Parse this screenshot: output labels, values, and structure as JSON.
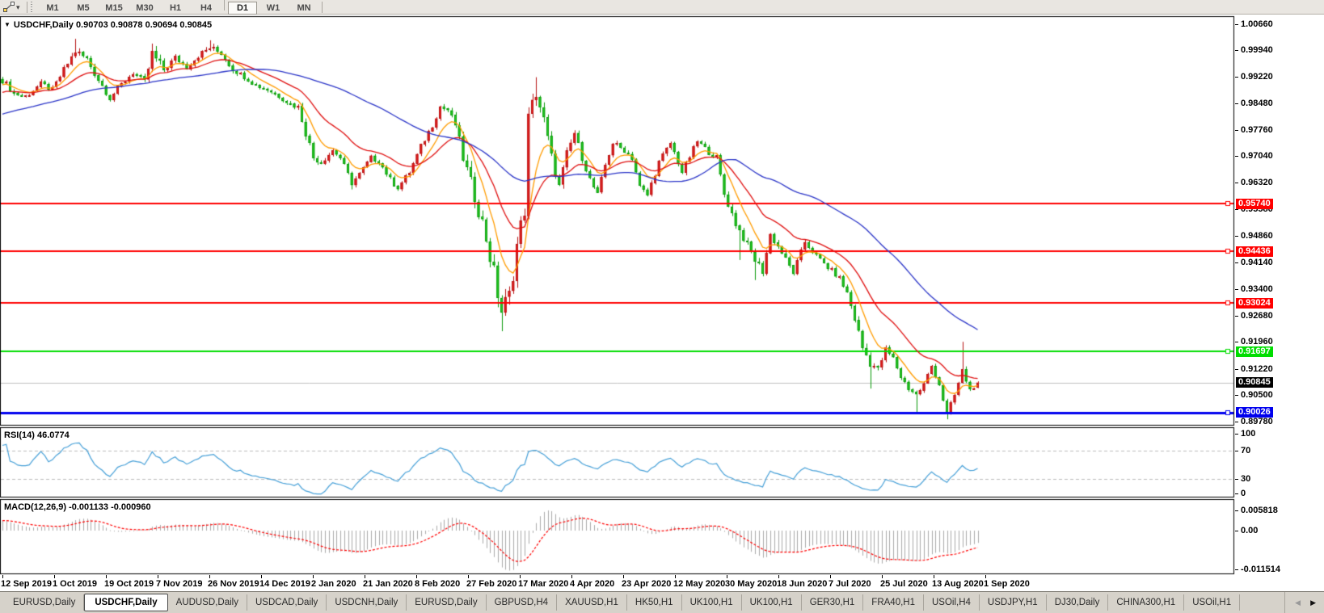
{
  "toolbar": {
    "timeframes": [
      "M1",
      "M5",
      "M15",
      "M30",
      "H1",
      "H4",
      "D1",
      "W1",
      "MN"
    ],
    "active_timeframe": "D1"
  },
  "chart": {
    "title": "USDCHF,Daily  0.90703 0.90878 0.90694 0.90845",
    "symbol": "USDCHF",
    "period": "Daily"
  },
  "indicators": {
    "rsi_title": "RSI(14) 46.0774",
    "macd_title": "MACD(12,26,9) -0.001133 -0.000960"
  },
  "tabs": {
    "items": [
      "EURUSD,Daily",
      "USDCHF,Daily",
      "AUDUSD,Daily",
      "USDCAD,Daily",
      "USDCNH,Daily",
      "EURUSD,Daily",
      "GBPUSD,H4",
      "XAUUSD,H1",
      "HK50,H1",
      "UK100,H1",
      "UK100,H1",
      "GER30,H1",
      "FRA40,H1",
      "USOil,H4",
      "USDJPY,H1",
      "DJ30,Daily",
      "CHINA300,H1",
      "USOil,H1"
    ],
    "active_index": 1
  },
  "colors": {
    "bull_fill": "#ee2222",
    "bull_border": "#b61212",
    "bear_fill": "#2ad42a",
    "bear_border": "#0a9a0a",
    "ma_fast": "#ff9c00",
    "ma_mid": "#e01010",
    "ma_slow": "#2b35c8",
    "level_red": "#ff0000",
    "level_green": "#00dd00",
    "level_blue": "#0000ee",
    "rsi_line": "#46a0d8",
    "rsi_dash": "#bdbdbd",
    "macd_hist": "#aaaaaa",
    "macd_signal": "#ff0000",
    "current_line": "#c0c0c0",
    "current_box": "#000000",
    "pane_border": "#000000",
    "pane_bg": "#ffffff",
    "toolbar_bg": "#e9e6e1",
    "tabbar_bg": "#d6d2ca"
  },
  "chart_data": {
    "type": "candlestick",
    "symbol": "USDCHF",
    "timeframe": "Daily",
    "ohlc": {
      "open": 0.90703,
      "high": 0.90878,
      "low": 0.90694,
      "close": 0.90845
    },
    "candle_count": 255,
    "price_axis": {
      "ticks": [
        "1.00660",
        "0.99940",
        "0.99220",
        "0.98480",
        "0.97760",
        "0.97040",
        "0.96320",
        "0.95580",
        "0.94860",
        "0.94140",
        "0.93400",
        "0.92680",
        "0.91960",
        "0.91220",
        "0.90500",
        "0.89780"
      ]
    },
    "close_anchors": [
      [
        0,
        0.9912,
        0.0016
      ],
      [
        3,
        0.9876,
        0.0016
      ],
      [
        6,
        0.9868,
        0.0014
      ],
      [
        10,
        0.9902,
        0.0013
      ],
      [
        13,
        0.9886,
        0.0013
      ],
      [
        17,
        0.9957,
        0.0018
      ],
      [
        19,
        0.9991,
        0.0022
      ],
      [
        22,
        0.9969,
        0.0018
      ],
      [
        25,
        0.9913,
        0.0016
      ],
      [
        28,
        0.9863,
        0.0015
      ],
      [
        31,
        0.9901,
        0.0014
      ],
      [
        34,
        0.9933,
        0.0013
      ],
      [
        37,
        0.9906,
        0.0016
      ],
      [
        39,
        0.9982,
        0.0032
      ],
      [
        42,
        0.994,
        0.002
      ],
      [
        45,
        0.9973,
        0.0015
      ],
      [
        48,
        0.9947,
        0.0013
      ],
      [
        51,
        0.9979,
        0.0014
      ],
      [
        54,
        1.0001,
        0.0019
      ],
      [
        57,
        0.9986,
        0.0014
      ],
      [
        60,
        0.9941,
        0.0013
      ],
      [
        63,
        0.9922,
        0.0012
      ],
      [
        66,
        0.9898,
        0.0012
      ],
      [
        69,
        0.9886,
        0.0012
      ],
      [
        72,
        0.9868,
        0.0012
      ],
      [
        75,
        0.9846,
        0.0013
      ],
      [
        77,
        0.9838,
        0.0014
      ],
      [
        79,
        0.977,
        0.0022
      ],
      [
        81,
        0.97,
        0.0018
      ],
      [
        83,
        0.9688,
        0.0014
      ],
      [
        86,
        0.972,
        0.0013
      ],
      [
        88,
        0.97,
        0.0013
      ],
      [
        91,
        0.963,
        0.0014
      ],
      [
        93,
        0.9655,
        0.0012
      ],
      [
        96,
        0.97,
        0.0012
      ],
      [
        98,
        0.969,
        0.0012
      ],
      [
        101,
        0.964,
        0.0013
      ],
      [
        103,
        0.9618,
        0.0013
      ],
      [
        106,
        0.966,
        0.0013
      ],
      [
        109,
        0.973,
        0.0014
      ],
      [
        112,
        0.979,
        0.0015
      ],
      [
        114,
        0.984,
        0.0014
      ],
      [
        116,
        0.983,
        0.0013
      ],
      [
        118,
        0.979,
        0.0018
      ],
      [
        120,
        0.97,
        0.003
      ],
      [
        122,
        0.963,
        0.0034
      ],
      [
        124,
        0.956,
        0.004
      ],
      [
        126,
        0.948,
        0.0046
      ],
      [
        128,
        0.938,
        0.0052
      ],
      [
        130,
        0.928,
        0.0058
      ],
      [
        132,
        0.932,
        0.005
      ],
      [
        134,
        0.946,
        0.0055
      ],
      [
        136,
        0.956,
        0.005
      ],
      [
        137,
        0.98,
        0.006
      ],
      [
        139,
        0.988,
        0.0042
      ],
      [
        141,
        0.98,
        0.0034
      ],
      [
        143,
        0.97,
        0.0028
      ],
      [
        145,
        0.962,
        0.0024
      ],
      [
        147,
        0.971,
        0.002
      ],
      [
        149,
        0.9768,
        0.0018
      ],
      [
        151,
        0.97,
        0.0017
      ],
      [
        153,
        0.964,
        0.0016
      ],
      [
        155,
        0.9598,
        0.0016
      ],
      [
        157,
        0.968,
        0.0015
      ],
      [
        159,
        0.974,
        0.0014
      ],
      [
        162,
        0.972,
        0.0014
      ],
      [
        164,
        0.97,
        0.0014
      ],
      [
        166,
        0.962,
        0.0015
      ],
      [
        168,
        0.9598,
        0.0015
      ],
      [
        171,
        0.9688,
        0.0014
      ],
      [
        174,
        0.974,
        0.0013
      ],
      [
        177,
        0.966,
        0.0014
      ],
      [
        181,
        0.9745,
        0.0013
      ],
      [
        184,
        0.9715,
        0.0013
      ],
      [
        186,
        0.97,
        0.0014
      ],
      [
        188,
        0.96,
        0.0018
      ],
      [
        191,
        0.952,
        0.0018
      ],
      [
        193,
        0.948,
        0.0018
      ],
      [
        196,
        0.942,
        0.0022
      ],
      [
        198,
        0.939,
        0.002
      ],
      [
        200,
        0.949,
        0.0016
      ],
      [
        203,
        0.944,
        0.0014
      ],
      [
        206,
        0.9385,
        0.0014
      ],
      [
        209,
        0.947,
        0.0014
      ],
      [
        212,
        0.943,
        0.0013
      ],
      [
        215,
        0.94,
        0.0013
      ],
      [
        218,
        0.937,
        0.0014
      ],
      [
        220,
        0.933,
        0.0016
      ],
      [
        222,
        0.926,
        0.002
      ],
      [
        224,
        0.918,
        0.0026
      ],
      [
        226,
        0.914,
        0.0024
      ],
      [
        228,
        0.912,
        0.0018
      ],
      [
        230,
        0.9175,
        0.0016
      ],
      [
        232,
        0.915,
        0.0014
      ],
      [
        234,
        0.91,
        0.0014
      ],
      [
        236,
        0.907,
        0.0015
      ],
      [
        238,
        0.905,
        0.0016
      ],
      [
        240,
        0.908,
        0.0014
      ],
      [
        242,
        0.913,
        0.0014
      ],
      [
        244,
        0.908,
        0.0013
      ],
      [
        246,
        0.8995,
        0.0016
      ],
      [
        248,
        0.905,
        0.0014
      ],
      [
        250,
        0.9115,
        0.002
      ],
      [
        252,
        0.9065,
        0.0012
      ],
      [
        254,
        0.90845,
        0.001
      ]
    ],
    "spike_wicks": [
      {
        "i": 19,
        "high": 1.0025
      },
      {
        "i": 39,
        "high": 1.0012
      },
      {
        "i": 54,
        "high": 1.0021
      },
      {
        "i": 91,
        "low": 0.9613
      },
      {
        "i": 103,
        "low": 0.9615
      },
      {
        "i": 130,
        "low": 0.9225
      },
      {
        "i": 139,
        "high": 0.992
      },
      {
        "i": 192,
        "low": 0.942
      },
      {
        "i": 196,
        "low": 0.9365
      },
      {
        "i": 226,
        "low": 0.9068
      },
      {
        "i": 238,
        "low": 0.9002
      },
      {
        "i": 246,
        "low": 0.8984
      },
      {
        "i": 250,
        "high": 0.9196
      }
    ],
    "prehistory": {
      "start": 0.97,
      "end": 0.9912,
      "count": 60,
      "noise": 0.0012
    },
    "moving_averages": [
      {
        "name": "fast",
        "period": 8,
        "color_key": "ma_fast",
        "sma": false
      },
      {
        "name": "mid",
        "period": 21,
        "color_key": "ma_mid",
        "sma": false
      },
      {
        "name": "slow",
        "period": 55,
        "color_key": "ma_slow",
        "sma": true
      }
    ],
    "levels": [
      {
        "value": 0.9574,
        "label": "0.95740",
        "color": "#ff0000",
        "width": 2
      },
      {
        "value": 0.94436,
        "label": "0.94436",
        "color": "#ff0000",
        "width": 2
      },
      {
        "value": 0.93024,
        "label": "0.93024",
        "color": "#ff0000",
        "width": 2
      },
      {
        "value": 0.91697,
        "label": "0.91697",
        "color": "#00dd00",
        "width": 2
      },
      {
        "value": 0.90026,
        "label": "0.90026",
        "color": "#0000ee",
        "width": 3
      }
    ],
    "current_price": {
      "value": 0.90845,
      "label": "0.90845"
    },
    "rsi": {
      "period": 14,
      "current": 46.0774,
      "levels": [
        70,
        30
      ],
      "axis_ticks": [
        "100",
        "70",
        "30",
        "0"
      ]
    },
    "macd": {
      "fast": 12,
      "slow": 26,
      "signal": 9,
      "current_main": -0.001133,
      "current_signal": -0.00096,
      "axis_max": 0.005818,
      "axis_min": -0.011514,
      "axis_ticks": [
        "0.005818",
        "0.00",
        "-0.011514"
      ]
    },
    "date_axis": {
      "labels": [
        "12 Sep 2019",
        "1 Oct 2019",
        "19 Oct 2019",
        "7 Nov 2019",
        "26 Nov 2019",
        "14 Dec 2019",
        "2 Jan 2020",
        "21 Jan 2020",
        "8 Feb 2020",
        "27 Feb 2020",
        "17 Mar 2020",
        "4 Apr 2020",
        "23 Apr 2020",
        "12 May 2020",
        "30 May 2020",
        "18 Jun 2020",
        "7 Jul 2020",
        "25 Jul 2020",
        "13 Aug 2020",
        "1 Sep 2020"
      ]
    }
  }
}
